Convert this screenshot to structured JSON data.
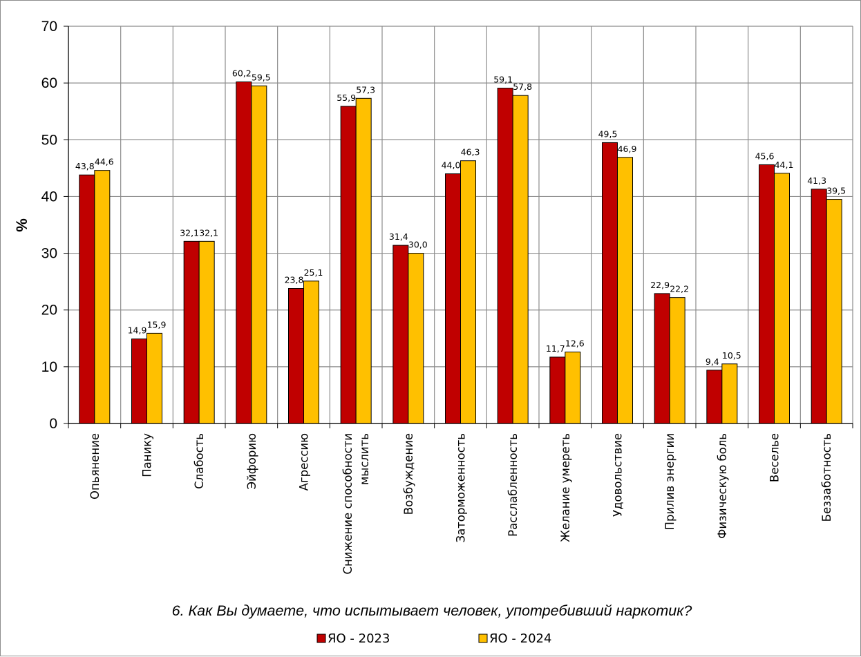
{
  "chart_data": {
    "type": "bar",
    "title": "6. Как Вы думаете, что испытывает человек, употребивший наркотик?",
    "xlabel": "",
    "ylabel": "%",
    "ylim": [
      0,
      70
    ],
    "yticks": [
      "0",
      "10",
      "20",
      "30",
      "40",
      "50",
      "60",
      "70"
    ],
    "grid": true,
    "legend_position": "bottom",
    "categories": [
      [
        "Опьянение"
      ],
      [
        "Панику"
      ],
      [
        "Слабость"
      ],
      [
        "Эйфорию"
      ],
      [
        "Агрессию"
      ],
      [
        "Снижение способности",
        "мыслить"
      ],
      [
        "Возбуждение"
      ],
      [
        "Заторможенность"
      ],
      [
        "Расслабленность"
      ],
      [
        "Желание умереть"
      ],
      [
        "Удовольствие"
      ],
      [
        "Прилив энергии"
      ],
      [
        "Физическую боль"
      ],
      [
        "Веселье"
      ],
      [
        "Беззаботность"
      ]
    ],
    "series": [
      {
        "name": "ЯО - 2023",
        "color": "#c00000",
        "values": [
          43.8,
          14.9,
          32.1,
          60.2,
          23.8,
          55.9,
          31.4,
          44.0,
          59.1,
          11.7,
          49.5,
          22.9,
          9.4,
          45.6,
          41.3
        ],
        "labels": [
          "43,8",
          "14,9",
          "32,1",
          "60,2",
          "23,8",
          "55,9",
          "31,4",
          "44,0",
          "59,1",
          "11,7",
          "49,5",
          "22,9",
          "9,4",
          "45,6",
          "41,3"
        ]
      },
      {
        "name": "ЯО - 2024",
        "color": "#ffc000",
        "values": [
          44.6,
          15.9,
          32.1,
          59.5,
          25.1,
          57.3,
          30.0,
          46.3,
          57.8,
          12.6,
          46.9,
          22.2,
          10.5,
          44.1,
          39.5
        ],
        "labels": [
          "44,6",
          "15,9",
          "32,1",
          "59,5",
          "25,1",
          "57,3",
          "30,0",
          "46,3",
          "57,8",
          "12,6",
          "46,9",
          "22,2",
          "10,5",
          "44,1",
          "39,5"
        ]
      }
    ]
  }
}
